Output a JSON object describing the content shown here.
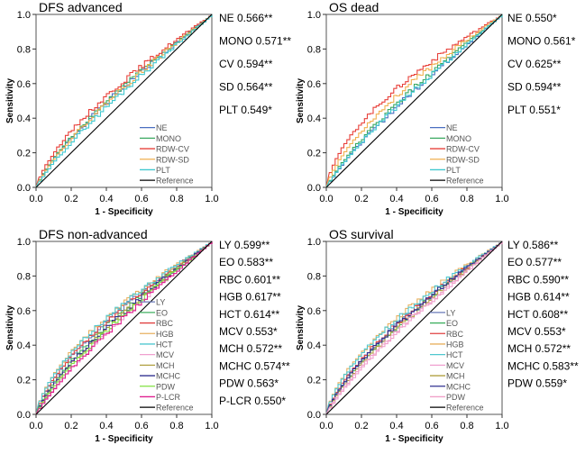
{
  "chart_data": [
    {
      "type": "line",
      "title": "DFS advanced",
      "xlabel": "1 - Specificity",
      "ylabel": "Sensitivity",
      "xlim": [
        0,
        1
      ],
      "ylim": [
        0,
        1
      ],
      "ticks": [
        "0.0",
        "0.2",
        "0.4",
        "0.6",
        "0.8",
        "1.0"
      ],
      "legend_placement": "bottom-right",
      "series": [
        {
          "name": "NE",
          "color": "#4a6fc0",
          "auc_label": "NE 0.566**",
          "auc": 0.566
        },
        {
          "name": "MONO",
          "color": "#3aa860",
          "auc_label": "MONO 0.571**",
          "auc": 0.571
        },
        {
          "name": "RDW-CV",
          "color": "#e8403a",
          "auc_label": "CV 0.594**",
          "auc": 0.594
        },
        {
          "name": "RDW-SD",
          "color": "#f0b050",
          "auc_label": "SD 0.564**",
          "auc": 0.564
        },
        {
          "name": "PLT",
          "color": "#40c8d0",
          "auc_label": "PLT 0.549*",
          "auc": 0.549
        },
        {
          "name": "Reference",
          "color": "#000000"
        }
      ]
    },
    {
      "type": "line",
      "title": "OS dead",
      "xlabel": "1 - Specificity",
      "ylabel": "Sensitivity",
      "xlim": [
        0,
        1
      ],
      "ylim": [
        0,
        1
      ],
      "ticks": [
        "0.0",
        "0.2",
        "0.4",
        "0.6",
        "0.8",
        "1.0"
      ],
      "legend_placement": "bottom-right",
      "series": [
        {
          "name": "NE",
          "color": "#4a6fc0",
          "auc_label": "NE 0.550*",
          "auc": 0.55
        },
        {
          "name": "MONO",
          "color": "#3aa860",
          "auc_label": "MONO 0.561*",
          "auc": 0.561
        },
        {
          "name": "RDW-CV",
          "color": "#e8403a",
          "auc_label": "CV 0.625**",
          "auc": 0.625
        },
        {
          "name": "RDW-SD",
          "color": "#f0b050",
          "auc_label": "SD 0.594**",
          "auc": 0.594
        },
        {
          "name": "PLT",
          "color": "#40c8d0",
          "auc_label": "PLT 0.551*",
          "auc": 0.551
        },
        {
          "name": "Reference",
          "color": "#000000"
        }
      ]
    },
    {
      "type": "line",
      "title": "DFS non-advanced",
      "xlabel": "1 - Specificity",
      "ylabel": "Sensitivity",
      "xlim": [
        0,
        1
      ],
      "ylim": [
        0,
        1
      ],
      "ticks": [
        "0.0",
        "0.2",
        "0.4",
        "0.6",
        "0.8",
        "1.0"
      ],
      "legend_placement": "bottom-right",
      "series": [
        {
          "name": "LY",
          "color": "#6a7ab8",
          "auc_label": "LY 0.599**",
          "auc": 0.599
        },
        {
          "name": "EO",
          "color": "#40b060",
          "auc_label": "EO 0.583**",
          "auc": 0.583
        },
        {
          "name": "RBC",
          "color": "#e04040",
          "auc_label": "RBC 0.601**",
          "auc": 0.601
        },
        {
          "name": "HGB",
          "color": "#e8b060",
          "auc_label": "HGB 0.617**",
          "auc": 0.617
        },
        {
          "name": "HCT",
          "color": "#50c8d0",
          "auc_label": "HCT 0.614**",
          "auc": 0.614
        },
        {
          "name": "MCV",
          "color": "#f0a0d0",
          "auc_label": "MCV 0.553*",
          "auc": 0.553
        },
        {
          "name": "MCH",
          "color": "#b0a040",
          "auc_label": "MCH 0.572**",
          "auc": 0.572
        },
        {
          "name": "MCHC",
          "color": "#303090",
          "auc_label": "MCHC 0.574**",
          "auc": 0.574
        },
        {
          "name": "PDW",
          "color": "#80e040",
          "auc_label": "PDW 0.563*",
          "auc": 0.563
        },
        {
          "name": "P-LCR",
          "color": "#e02090",
          "auc_label": "P-LCR 0.550*",
          "auc": 0.55
        },
        {
          "name": "Reference",
          "color": "#000000"
        }
      ]
    },
    {
      "type": "line",
      "title": "OS survival",
      "xlabel": "1 - Specificity",
      "ylabel": "Sensitivity",
      "xlim": [
        0,
        1
      ],
      "ylim": [
        0,
        1
      ],
      "ticks": [
        "0.0",
        "0.2",
        "0.4",
        "0.6",
        "0.8",
        "1.0"
      ],
      "legend_placement": "bottom-right",
      "series": [
        {
          "name": "LY",
          "color": "#6a7ab8",
          "auc_label": "LY 0.586**",
          "auc": 0.586
        },
        {
          "name": "EO",
          "color": "#40b060",
          "auc_label": "EO 0.577**",
          "auc": 0.577
        },
        {
          "name": "RBC",
          "color": "#e04040",
          "auc_label": "RBC 0.590**",
          "auc": 0.59
        },
        {
          "name": "HGB",
          "color": "#e8b060",
          "auc_label": "HGB 0.614**",
          "auc": 0.614
        },
        {
          "name": "HCT",
          "color": "#50c8d0",
          "auc_label": "HCT 0.608**",
          "auc": 0.608
        },
        {
          "name": "MCV",
          "color": "#f0a0d0",
          "auc_label": "MCV 0.553*",
          "auc": 0.553
        },
        {
          "name": "MCH",
          "color": "#b0a040",
          "auc_label": "MCH 0.572**",
          "auc": 0.572
        },
        {
          "name": "MCHC",
          "color": "#303090",
          "auc_label": "MCHC 0.583**",
          "auc": 0.583
        },
        {
          "name": "PDW",
          "color": "#f0a0c8",
          "auc_label": "PDW 0.559*",
          "auc": 0.559
        },
        {
          "name": "Reference",
          "color": "#000000"
        }
      ]
    }
  ]
}
